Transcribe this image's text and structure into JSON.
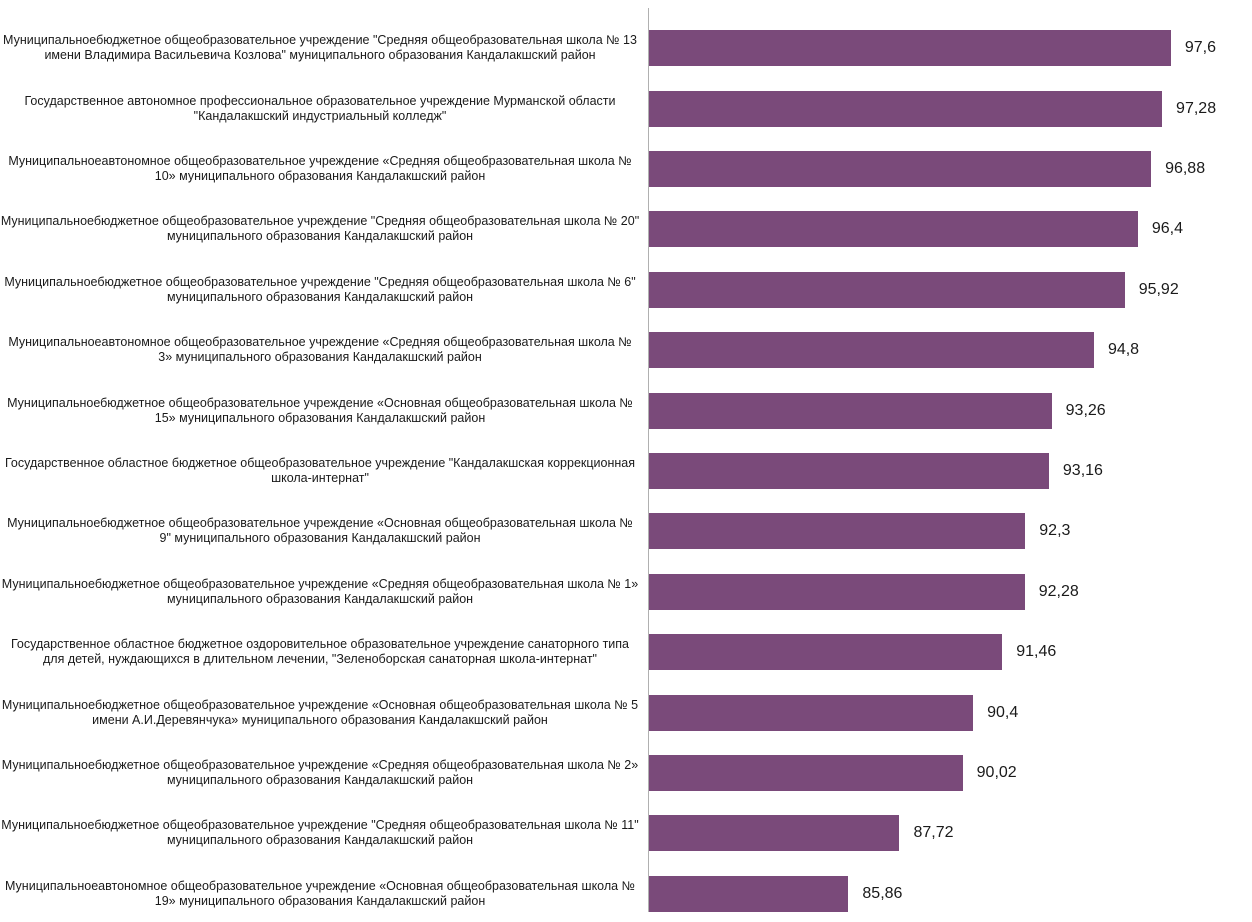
{
  "chart_data": {
    "type": "bar",
    "orientation": "horizontal",
    "bar_color": "#7a4a7a",
    "categories": [
      "Муниципальноебюджетное общеобразовательное учреждение \"Средняя общеобразовательная школа № 13 имени Владимира Васильевича Козлова\" муниципального образования Кандалакшский район",
      "Государственное автономное профессиональное образовательное учреждение Мурманской области \"Кандалакшский индустриальный колледж\"",
      "Муниципальноеавтономное общеобразовательное учреждение «Средняя общеобразовательная школа № 10» муниципального образования Кандалакшский район",
      "Муниципальноебюджетное общеобразовательное учреждение \"Средняя общеобразовательная школа № 20\" муниципального образования Кандалакшский район",
      "Муниципальноебюджетное общеобразовательное учреждение \"Средняя общеобразовательная школа № 6\" муниципального образования Кандалакшский район",
      "Муниципальноеавтономное общеобразовательное учреждение «Средняя общеобразовательная школа № 3» муниципального образования Кандалакшский район",
      "Муниципальноебюджетное общеобразовательное учреждение «Основная общеобразовательная школа № 15» муниципального образования Кандалакшский район",
      "Государственное областное бюджетное общеобразовательное учреждение \"Кандалакшская коррекционная школа-интернат\"",
      "Муниципальноебюджетное общеобразовательное учреждение «Основная общеобразовательная школа № 9\" муниципального образования Кандалакшский район",
      "Муниципальноебюджетное общеобразовательное учреждение «Средняя общеобразовательная школа № 1» муниципального образования Кандалакшский район",
      "Государственное областное бюджетное оздоровительное образовательное учреждение санаторного типа для детей, нуждающихся в длительном лечении, \"Зеленоборская санаторная школа-интернат\"",
      "Муниципальноебюджетное общеобразовательное учреждение «Основная общеобразовательная школа № 5 имени А.И.Деревянчука» муниципального образования Кандалакшский район",
      "Муниципальноебюджетное общеобразовательное учреждение «Средняя общеобразовательная школа № 2» муниципального образования Кандалакшский район",
      "Муниципальноебюджетное общеобразовательное учреждение \"Средняя общеобразовательная школа № 11\" муниципального образования Кандалакшский район",
      "Муниципальноеавтономное общеобразовательное учреждение «Основная общеобразовательная школа № 19» муниципального образования Кандалакшский район"
    ],
    "values": [
      97.6,
      97.28,
      96.88,
      96.4,
      95.92,
      94.8,
      93.26,
      93.16,
      92.3,
      92.28,
      91.46,
      90.4,
      90.02,
      87.72,
      85.86
    ],
    "value_labels": [
      "97,6",
      "97,28",
      "96,88",
      "96,4",
      "95,92",
      "94,8",
      "93,26",
      "93,16",
      "92,3",
      "92,28",
      "91,46",
      "90,4",
      "90,02",
      "87,72",
      "85,86"
    ],
    "xlim": [
      78.6,
      100.3
    ]
  }
}
